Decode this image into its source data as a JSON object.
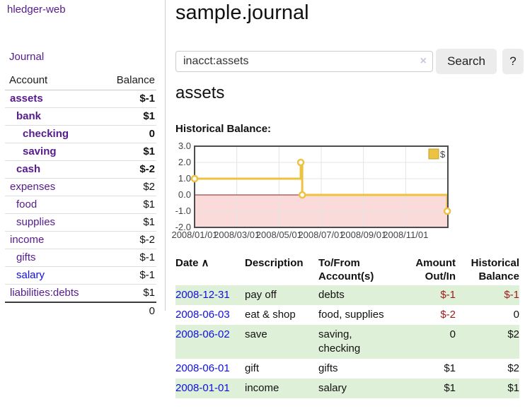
{
  "sidebar": {
    "brand": "hledger-web",
    "nav_journal": "Journal",
    "accounts_table": {
      "header_account": "Account",
      "header_balance": "Balance",
      "rows": [
        {
          "account": "assets",
          "indent": 0,
          "bold": true,
          "balance": "$-1",
          "balance_style": "neg-strong",
          "link_color": "purple"
        },
        {
          "account": "bank",
          "indent": 1,
          "bold": true,
          "balance": "$1",
          "balance_style": "plain",
          "link_color": "purple"
        },
        {
          "account": "checking",
          "indent": 2,
          "bold": true,
          "balance": "0",
          "balance_style": "plain",
          "link_color": "purple"
        },
        {
          "account": "saving",
          "indent": 2,
          "bold": true,
          "balance": "$1",
          "balance_style": "plain",
          "link_color": "purple"
        },
        {
          "account": "cash",
          "indent": 1,
          "bold": true,
          "balance": "$-2",
          "balance_style": "neg-strong",
          "link_color": "purple"
        },
        {
          "account": "expenses",
          "indent": 0,
          "bold": false,
          "balance": "$2",
          "balance_style": "plain",
          "link_color": "purple"
        },
        {
          "account": "food",
          "indent": 1,
          "bold": false,
          "balance": "$1",
          "balance_style": "plain",
          "link_color": "purple"
        },
        {
          "account": "supplies",
          "indent": 1,
          "bold": false,
          "balance": "$1",
          "balance_style": "plain",
          "link_color": "purple"
        },
        {
          "account": "income",
          "indent": 0,
          "bold": false,
          "balance": "$-2",
          "balance_style": "neg-soft",
          "link_color": "purple"
        },
        {
          "account": "gifts",
          "indent": 1,
          "bold": false,
          "balance": "$-1",
          "balance_style": "neg-soft",
          "link_color": "purple"
        },
        {
          "account": "salary",
          "indent": 1,
          "bold": false,
          "balance": "$-1",
          "balance_style": "neg-soft",
          "link_color": "blue"
        },
        {
          "account": "liabilities:debts",
          "indent": 0,
          "bold": false,
          "balance": "$1",
          "balance_style": "plain",
          "link_color": "purple"
        }
      ],
      "total": "0"
    }
  },
  "main": {
    "title": "sample.journal",
    "search": {
      "value": "inacct:assets",
      "clear_icon": "×",
      "button_label": "Search",
      "help_label": "?"
    },
    "account_heading": "assets",
    "chart_label": "Historical Balance:",
    "register_table": {
      "header_date": "Date",
      "sort_icon": "∧",
      "header_description": "Description",
      "header_accounts": "To/From Account(s)",
      "header_amount": "Amount Out/In",
      "header_balance": "Historical Balance",
      "rows": [
        {
          "date": "2008-12-31",
          "description": "pay off",
          "accounts": "debts",
          "amount": "$-1",
          "balance": "$-1",
          "amount_negative": true,
          "balance_negative": true,
          "shaded": true
        },
        {
          "date": "2008-06-03",
          "description": "eat & shop",
          "accounts": "food, supplies",
          "amount": "$-2",
          "balance": "0",
          "amount_negative": true,
          "balance_negative": false,
          "shaded": false
        },
        {
          "date": "2008-06-02",
          "description": "save",
          "accounts": "saving, checking",
          "amount": "0",
          "balance": "$2",
          "amount_negative": false,
          "balance_negative": false,
          "shaded": true
        },
        {
          "date": "2008-06-01",
          "description": "gift",
          "accounts": "gifts",
          "amount": "$1",
          "balance": "$2",
          "amount_negative": false,
          "balance_negative": false,
          "shaded": false
        },
        {
          "date": "2008-01-01",
          "description": "income",
          "accounts": "salary",
          "amount": "$1",
          "balance": "$1",
          "amount_negative": false,
          "balance_negative": false,
          "shaded": true
        }
      ]
    }
  },
  "chart_data": {
    "type": "line",
    "title": "Historical Balance:",
    "legend": {
      "label": "$",
      "position": "top-right"
    },
    "x_axis": {
      "tick_labels": [
        "2008/01/01",
        "2008/03/01",
        "2008/05/01",
        "2008/07/01",
        "2008/09/01",
        "2008/11/01"
      ],
      "tick_months": [
        0,
        2,
        4,
        6,
        8,
        10
      ],
      "range_months": [
        0,
        12
      ]
    },
    "y_axis": {
      "tick_labels": [
        "3.0",
        "2.0",
        "1.0",
        "0.0",
        "-1.0",
        "-2.0"
      ],
      "tick_values": [
        3,
        2,
        1,
        0,
        -1,
        -2
      ],
      "range": [
        -2,
        3
      ]
    },
    "series": [
      {
        "name": "$",
        "color": "#edc240",
        "step": true,
        "points": [
          {
            "date": "2008-01-01",
            "value": 1
          },
          {
            "date": "2008-06-01",
            "value": 2
          },
          {
            "date": "2008-06-02",
            "value": 2
          },
          {
            "date": "2008-06-03",
            "value": 0
          },
          {
            "date": "2008-12-31",
            "value": -1
          }
        ],
        "line_months": [
          [
            0,
            1
          ],
          [
            5.03,
            1
          ],
          [
            5.03,
            2
          ],
          [
            5.1,
            2
          ],
          [
            5.1,
            0
          ],
          [
            11.97,
            0
          ],
          [
            11.97,
            -1
          ]
        ],
        "marker_months": [
          [
            0,
            1
          ],
          [
            5.03,
            2
          ],
          [
            5.1,
            0
          ],
          [
            11.97,
            -1
          ]
        ]
      }
    ],
    "grid": true,
    "grid_color": "#e4e4e4",
    "border_color": "#4d4d4d",
    "zero_line_color": "#8b1d1d",
    "negative_region_color": "#fbdada"
  },
  "colors": {
    "link_purple": "#551b8c",
    "link_blue": "#0f0fe0",
    "negative_strong": "#9e1a1a",
    "negative_soft": "#c98585",
    "row_highlight_green": "#dff0d8",
    "series_yellow": "#edc240",
    "button_gray": "#ececec"
  }
}
